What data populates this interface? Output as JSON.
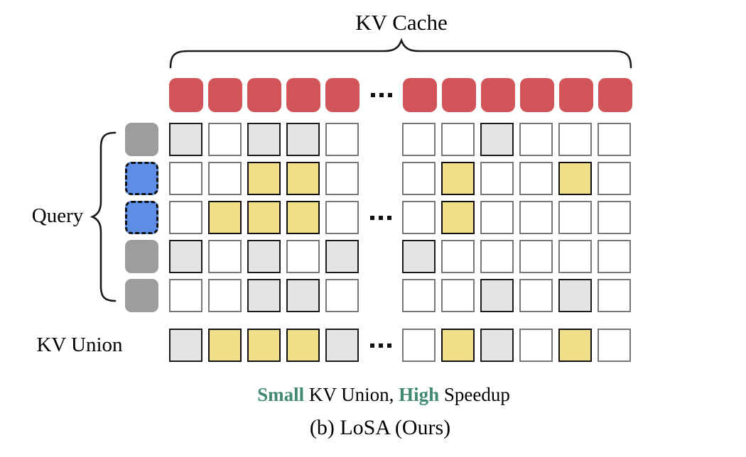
{
  "labels": {
    "kv_cache": "KV Cache",
    "query": "Query",
    "kv_union": "KV Union"
  },
  "caption": {
    "small": "Small",
    "mid": " KV Union, ",
    "high": "High",
    "end": " Speedup",
    "figure": "(b) LoSA (Ours)"
  },
  "colors": {
    "red": "#d15459",
    "yellow": "#f1de88",
    "gray_fill": "#e4e4e4",
    "query_gray": "#9d9d9d",
    "query_blue": "#5e8de6",
    "green_text": "#418a71",
    "border_dark": "#1c1c1c",
    "border_light": "#777777"
  },
  "kv_cache_row": {
    "left_count": 5,
    "right_count": 6
  },
  "query_column": [
    "gray",
    "blue",
    "blue",
    "gray",
    "gray"
  ],
  "attention_grid": {
    "left": [
      [
        "gray",
        "white",
        "gray",
        "gray",
        "white"
      ],
      [
        "white",
        "white",
        "yellow",
        "yellow",
        "white"
      ],
      [
        "white",
        "yellow",
        "yellow",
        "yellow",
        "white"
      ],
      [
        "gray",
        "white",
        "gray",
        "white",
        "gray"
      ],
      [
        "white",
        "white",
        "gray",
        "gray",
        "white"
      ]
    ],
    "right": [
      [
        "white",
        "white",
        "gray",
        "white",
        "white",
        "white"
      ],
      [
        "white",
        "yellow",
        "white",
        "white",
        "yellow",
        "white"
      ],
      [
        "white",
        "yellow",
        "white",
        "white",
        "white",
        "white"
      ],
      [
        "gray",
        "white",
        "white",
        "white",
        "white",
        "white"
      ],
      [
        "white",
        "white",
        "gray",
        "white",
        "gray",
        "white"
      ]
    ]
  },
  "kv_union_row": {
    "left": [
      "gray",
      "yellow",
      "yellow",
      "yellow",
      "gray"
    ],
    "right": [
      "white",
      "yellow",
      "gray",
      "white",
      "yellow",
      "white"
    ]
  }
}
